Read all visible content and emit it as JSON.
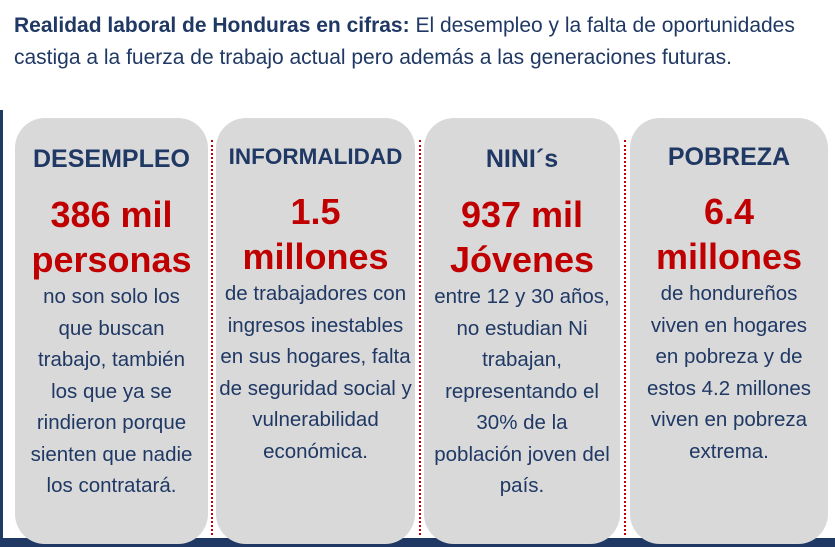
{
  "header": {
    "title_bold": "Realidad laboral de Honduras en cifras:",
    "title_rest": " El desempleo y la falta de oportunidades castiga a la fuerza de trabajo actual pero además a las generaciones futuras."
  },
  "cards": [
    {
      "title": "DESEMPLEO",
      "stat_line1": "386 mil",
      "stat_line2": "personas",
      "description": "no son solo los que buscan trabajo, también los que ya se rindieron porque sienten que nadie los contratará."
    },
    {
      "title": "INFORMALIDAD",
      "stat_line1": "1.5",
      "stat_line2": "millones",
      "description": "de trabajadores con ingresos inestables en sus hogares, falta de seguridad social y vulnerabilidad económica."
    },
    {
      "title": "NINI´s",
      "stat_line1": "937 mil",
      "stat_line2": "Jóvenes",
      "description": "entre 12 y 30 años, no estudian Ni trabajan, representando el 30% de la población joven del país."
    },
    {
      "title": "POBREZA",
      "stat_line1": "6.4",
      "stat_line2": "millones",
      "description": "de hondureños viven en hogares en pobreza y de estos 4.2 millones viven en pobreza extrema."
    }
  ],
  "colors": {
    "navy": "#1f3864",
    "accent_red": "#c00000",
    "card_bg": "#d9d9d9"
  }
}
